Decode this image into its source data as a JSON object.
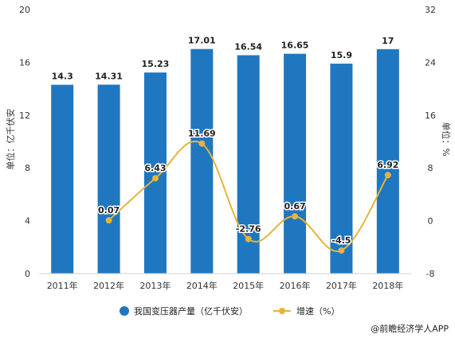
{
  "chart_data": {
    "type": "bar",
    "categories": [
      "2011年",
      "2012年",
      "2013年",
      "2014年",
      "2015年",
      "2016年",
      "2017年",
      "2018年"
    ],
    "series": [
      {
        "name": "我国变压器产量（亿千伏安）",
        "type": "bar",
        "axis": "left",
        "color": "#1f77c0",
        "values": [
          14.3,
          14.31,
          15.23,
          17.01,
          16.54,
          16.65,
          15.9,
          17
        ]
      },
      {
        "name": "增速（%）",
        "type": "line",
        "axis": "right",
        "color": "#e6b43c",
        "values": [
          null,
          0.07,
          6.43,
          11.69,
          -2.76,
          0.67,
          -4.5,
          6.92
        ]
      }
    ],
    "y_left": {
      "label": "单位：亿千伏安",
      "min": 0,
      "max": 20,
      "ticks": [
        0,
        4,
        8,
        12,
        16,
        20
      ]
    },
    "y_right": {
      "label": "单位：%",
      "min": -8,
      "max": 32,
      "ticks": [
        -8,
        0,
        8,
        16,
        24,
        32
      ]
    },
    "legend_position": "bottom",
    "grid": false
  },
  "source": "@前瞻经济学人APP"
}
